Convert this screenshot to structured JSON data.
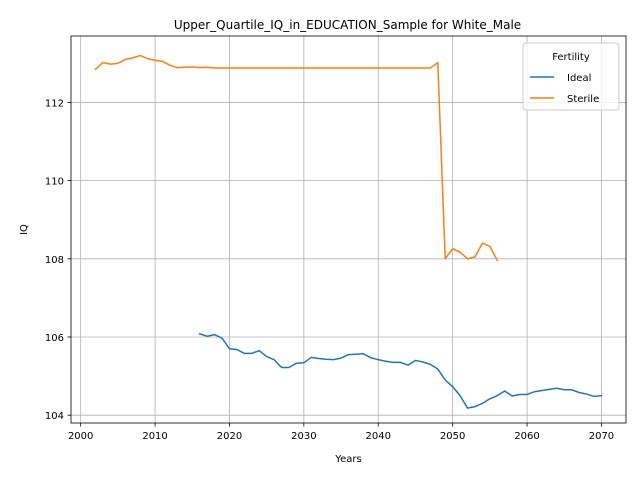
{
  "chart_data": {
    "type": "line",
    "title": "Upper_Quartile_IQ_in_EDUCATION_Sample for White_Male",
    "xlabel": "Years",
    "ylabel": "IQ",
    "xlim": [
      1998.7,
      2073.3
    ],
    "ylim": [
      103.8,
      113.7
    ],
    "xticks": [
      2000,
      2010,
      2020,
      2030,
      2040,
      2050,
      2060,
      2070
    ],
    "xtick_labels": [
      "2000",
      "2010",
      "2020",
      "2030",
      "2040",
      "2050",
      "2060",
      "2070"
    ],
    "yticks": [
      104,
      106,
      108,
      110,
      112
    ],
    "ytick_labels": [
      "104",
      "106",
      "108",
      "110",
      "112"
    ],
    "grid": true,
    "legend": {
      "title": "Fertility",
      "position": "top-right"
    },
    "series": [
      {
        "name": "Ideal",
        "color": "#1f77b4",
        "x": [
          2016,
          2017,
          2018,
          2019,
          2020,
          2021,
          2022,
          2023,
          2024,
          2025,
          2026,
          2027,
          2028,
          2029,
          2030,
          2031,
          2032,
          2033,
          2034,
          2035,
          2036,
          2037,
          2038,
          2039,
          2040,
          2041,
          2042,
          2043,
          2044,
          2045,
          2046,
          2047,
          2048,
          2049,
          2050,
          2051,
          2052,
          2053,
          2054,
          2055,
          2056,
          2057,
          2058,
          2059,
          2060,
          2061,
          2062,
          2063,
          2064,
          2065,
          2066,
          2067,
          2068,
          2069,
          2070
        ],
        "y": [
          106.08,
          106.02,
          106.06,
          105.97,
          105.7,
          105.68,
          105.58,
          105.58,
          105.65,
          105.5,
          105.42,
          105.22,
          105.22,
          105.33,
          105.34,
          105.48,
          105.45,
          105.43,
          105.42,
          105.46,
          105.55,
          105.56,
          105.57,
          105.47,
          105.42,
          105.38,
          105.35,
          105.35,
          105.28,
          105.4,
          105.36,
          105.3,
          105.18,
          104.9,
          104.73,
          104.5,
          104.18,
          104.22,
          104.3,
          104.42,
          104.5,
          104.62,
          104.49,
          104.53,
          104.53,
          104.6,
          104.63,
          104.66,
          104.69,
          104.65,
          104.65,
          104.58,
          104.54,
          104.48,
          104.5
        ]
      },
      {
        "name": "Sterile",
        "color": "#ff7f0e",
        "x": [
          2002,
          2003,
          2004,
          2005,
          2006,
          2007,
          2008,
          2009,
          2010,
          2011,
          2012,
          2013,
          2014,
          2015,
          2016,
          2017,
          2018,
          2019,
          2020,
          2021,
          2022,
          2023,
          2024,
          2025,
          2026,
          2027,
          2028,
          2029,
          2030,
          2031,
          2032,
          2033,
          2034,
          2035,
          2036,
          2037,
          2038,
          2039,
          2040,
          2041,
          2042,
          2043,
          2044,
          2045,
          2046,
          2047,
          2048,
          2049,
          2050,
          2051,
          2052,
          2053,
          2054,
          2055,
          2056
        ],
        "y": [
          112.85,
          113.02,
          112.98,
          113.0,
          113.1,
          113.14,
          113.2,
          113.12,
          113.08,
          113.05,
          112.95,
          112.89,
          112.9,
          112.91,
          112.89,
          112.9,
          112.88,
          112.88,
          112.88,
          112.88,
          112.88,
          112.88,
          112.88,
          112.88,
          112.88,
          112.88,
          112.88,
          112.88,
          112.88,
          112.88,
          112.88,
          112.88,
          112.88,
          112.88,
          112.88,
          112.88,
          112.88,
          112.88,
          112.88,
          112.88,
          112.88,
          112.88,
          112.88,
          112.88,
          112.88,
          112.88,
          113.02,
          108.0,
          108.26,
          108.17,
          108.0,
          108.05,
          108.4,
          108.32,
          107.96
        ]
      }
    ]
  }
}
